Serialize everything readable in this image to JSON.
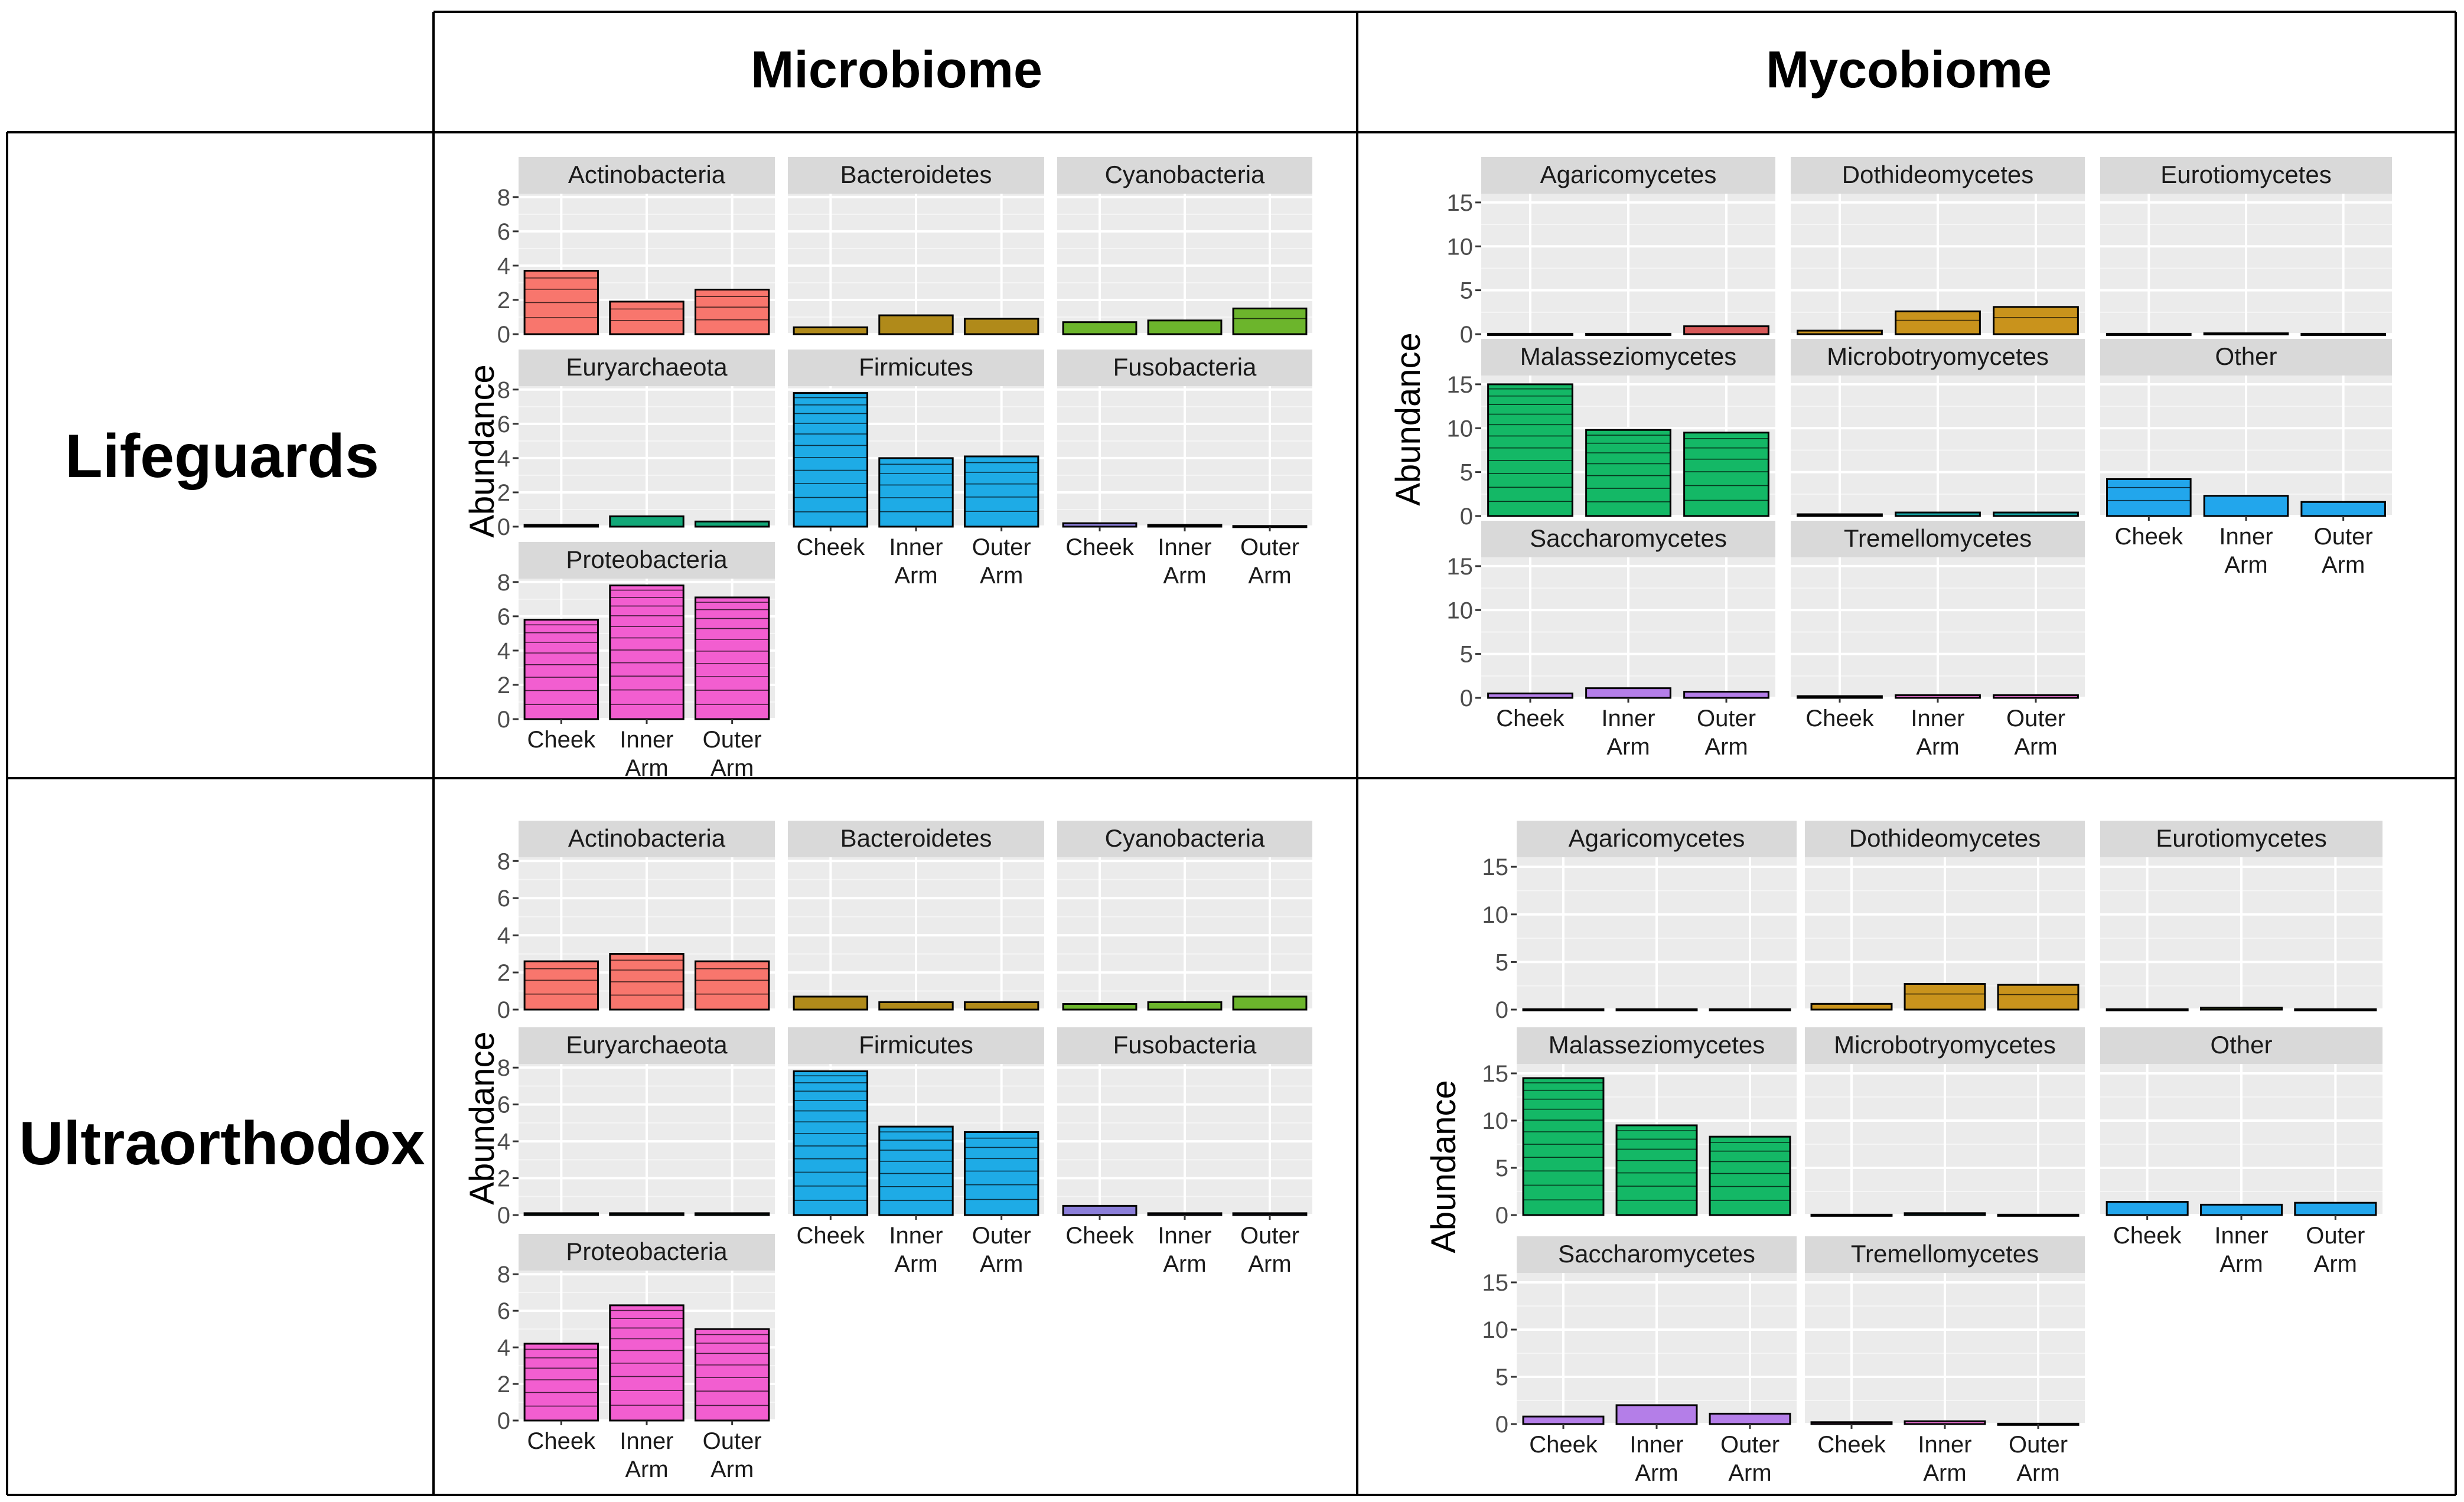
{
  "figure": {
    "columns": [
      "Microbiome",
      "Mycobiome"
    ],
    "rows": [
      "Lifeguards",
      "Ultraorthodox"
    ]
  },
  "colors": {
    "Actinobacteria": "#f8766d",
    "Bacteroidetes": "#b08a1a",
    "Cyanobacteria": "#6cb52c",
    "Euryarchaeota": "#12a878",
    "Firmicutes": "#1eabe6",
    "Fusobacteria": "#8b7ed9",
    "Proteobacteria": "#f25ed0",
    "Agaricomycetes": "#d65858",
    "Dothideomycetes": "#c9931c",
    "Eurotiomycetes": "#7ea82a",
    "Malasseziomycetes": "#14b866",
    "Microbotryomycetes": "#13a3a3",
    "Other": "#22a6ec",
    "Saccharomycetes": "#b47ee8",
    "Tremellomycetes": "#e76fd0",
    "panel_bg": "#ebebeb",
    "strip_bg": "#d9d9d9"
  },
  "chart_data": [
    {
      "type": "bar",
      "row": "Lifeguards",
      "column": "Microbiome",
      "ylabel": "Abundance",
      "ylim": [
        0,
        8.2
      ],
      "yticks": [
        0,
        2,
        4,
        6,
        8
      ],
      "categories": [
        "Cheek",
        "Inner Arm",
        "Outer Arm"
      ],
      "facets": [
        {
          "name": "Actinobacteria",
          "values": [
            3.7,
            1.9,
            2.6
          ]
        },
        {
          "name": "Bacteroidetes",
          "values": [
            0.4,
            1.1,
            0.9
          ]
        },
        {
          "name": "Cyanobacteria",
          "values": [
            0.7,
            0.8,
            1.5
          ]
        },
        {
          "name": "Euryarchaeota",
          "values": [
            0.1,
            0.6,
            0.3
          ]
        },
        {
          "name": "Firmicutes",
          "values": [
            7.8,
            4.0,
            4.1
          ]
        },
        {
          "name": "Fusobacteria",
          "values": [
            0.2,
            0.1,
            0.0
          ]
        },
        {
          "name": "Proteobacteria",
          "values": [
            5.8,
            7.8,
            7.1
          ]
        }
      ]
    },
    {
      "type": "bar",
      "row": "Lifeguards",
      "column": "Mycobiome",
      "ylabel": "Abundance",
      "ylim": [
        0,
        16
      ],
      "yticks": [
        0,
        5,
        10,
        15
      ],
      "categories": [
        "Cheek",
        "Inner Arm",
        "Outer Arm"
      ],
      "facets": [
        {
          "name": "Agaricomycetes",
          "values": [
            0.0,
            0.0,
            0.9
          ]
        },
        {
          "name": "Dothideomycetes",
          "values": [
            0.4,
            2.6,
            3.1
          ]
        },
        {
          "name": "Eurotiomycetes",
          "values": [
            0.0,
            0.1,
            0.0
          ]
        },
        {
          "name": "Malasseziomycetes",
          "values": [
            15.0,
            9.8,
            9.5
          ]
        },
        {
          "name": "Microbotryomycetes",
          "values": [
            0.2,
            0.4,
            0.4
          ]
        },
        {
          "name": "Other",
          "values": [
            4.2,
            2.3,
            1.6
          ]
        },
        {
          "name": "Saccharomycetes",
          "values": [
            0.5,
            1.1,
            0.7
          ]
        },
        {
          "name": "Tremellomycetes",
          "values": [
            0.2,
            0.3,
            0.3
          ]
        }
      ]
    },
    {
      "type": "bar",
      "row": "Ultraorthodox",
      "column": "Microbiome",
      "ylabel": "Abundance",
      "ylim": [
        0,
        8.2
      ],
      "yticks": [
        0,
        2,
        4,
        6,
        8
      ],
      "categories": [
        "Cheek",
        "Inner Arm",
        "Outer Arm"
      ],
      "facets": [
        {
          "name": "Actinobacteria",
          "values": [
            2.6,
            3.0,
            2.6
          ]
        },
        {
          "name": "Bacteroidetes",
          "values": [
            0.7,
            0.4,
            0.4
          ]
        },
        {
          "name": "Cyanobacteria",
          "values": [
            0.3,
            0.4,
            0.7
          ]
        },
        {
          "name": "Euryarchaeota",
          "values": [
            0.1,
            0.1,
            0.1
          ]
        },
        {
          "name": "Firmicutes",
          "values": [
            7.8,
            4.8,
            4.5
          ]
        },
        {
          "name": "Fusobacteria",
          "values": [
            0.5,
            0.1,
            0.1
          ]
        },
        {
          "name": "Proteobacteria",
          "values": [
            4.2,
            6.3,
            5.0
          ]
        }
      ]
    },
    {
      "type": "bar",
      "row": "Ultraorthodox",
      "column": "Mycobiome",
      "ylabel": "Abundance",
      "ylim": [
        0,
        16
      ],
      "yticks": [
        0,
        5,
        10,
        15
      ],
      "categories": [
        "Cheek",
        "Inner Arm",
        "Outer Arm"
      ],
      "facets": [
        {
          "name": "Agaricomycetes",
          "values": [
            0.0,
            0.0,
            0.0
          ]
        },
        {
          "name": "Dothideomycetes",
          "values": [
            0.6,
            2.7,
            2.6
          ]
        },
        {
          "name": "Eurotiomycetes",
          "values": [
            0.0,
            0.2,
            0.0
          ]
        },
        {
          "name": "Malasseziomycetes",
          "values": [
            14.5,
            9.5,
            8.3
          ]
        },
        {
          "name": "Microbotryomycetes",
          "values": [
            0.0,
            0.2,
            0.0
          ]
        },
        {
          "name": "Other",
          "values": [
            1.4,
            1.1,
            1.3
          ]
        },
        {
          "name": "Saccharomycetes",
          "values": [
            0.8,
            2.0,
            1.1
          ]
        },
        {
          "name": "Tremellomycetes",
          "values": [
            0.2,
            0.3,
            0.0
          ]
        }
      ]
    }
  ]
}
